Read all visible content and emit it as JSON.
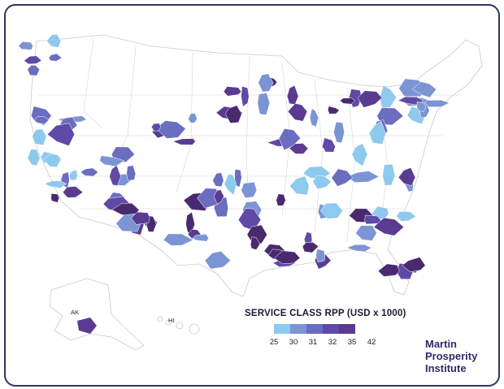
{
  "legend": {
    "title": "SERVICE CLASS RPP (USD x 1000)",
    "bins": [
      {
        "label": "25",
        "color": "#8ec9ee"
      },
      {
        "label": "30",
        "color": "#7b95d4"
      },
      {
        "label": "31",
        "color": "#6a6dc0"
      },
      {
        "label": "32",
        "color": "#5f4aa8"
      },
      {
        "label": "35",
        "color": "#5a3b91"
      },
      {
        "label": "42",
        "color": "#4a2a6e"
      }
    ]
  },
  "region_labels": {
    "alaska": "AK",
    "hawaii": "HI"
  },
  "brand": {
    "line1": "Martin",
    "line2": "Prosperity",
    "line3": "Institute"
  },
  "colors": {
    "frame": "#2e3560",
    "state_border": "#c9c9c9",
    "brand": "#2f2a6b"
  }
}
